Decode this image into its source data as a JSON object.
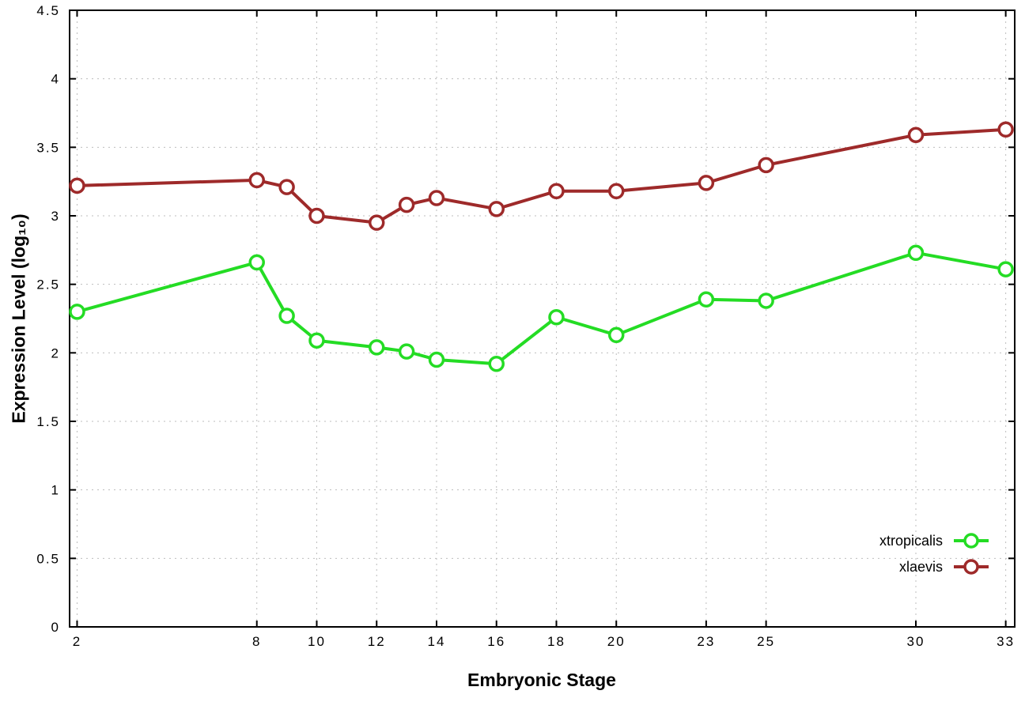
{
  "chart_data": {
    "type": "line",
    "title": "",
    "xlabel": "Embryonic Stage",
    "ylabel": "Expression Level (log₁₀)",
    "xlim": [
      1.75,
      33.3
    ],
    "ylim": [
      0,
      4.5
    ],
    "grid": true,
    "legend_position": "bottom-right",
    "xticks": {
      "values": [
        2,
        8,
        10,
        12,
        14,
        16,
        18,
        20,
        23,
        25,
        30,
        33
      ],
      "labels": [
        "2",
        "8",
        "10",
        "12",
        "14",
        "16",
        "18",
        "20",
        "23",
        "25",
        "30",
        "33"
      ]
    },
    "yticks": {
      "values": [
        0,
        0.5,
        1,
        1.5,
        2,
        2.5,
        3,
        3.5,
        4,
        4.5
      ],
      "labels": [
        "0",
        "0.5",
        "1",
        "1.5",
        "2",
        "2.5",
        "3",
        "3.5",
        "4",
        "4.5"
      ]
    },
    "x": [
      2,
      8,
      9,
      10,
      12,
      13,
      14,
      16,
      18,
      20,
      23,
      25,
      30,
      33
    ],
    "series": [
      {
        "name": "xtropicalis",
        "color": "#24dc24",
        "values": [
          2.3,
          2.66,
          2.27,
          2.09,
          2.04,
          2.01,
          1.95,
          1.92,
          2.26,
          2.13,
          2.39,
          2.38,
          2.73,
          2.61
        ]
      },
      {
        "name": "xlaevis",
        "color": "#9e2a2a",
        "values": [
          3.22,
          3.26,
          3.21,
          3.0,
          2.95,
          3.08,
          3.13,
          3.05,
          3.18,
          3.18,
          3.24,
          3.37,
          3.59,
          3.63
        ]
      }
    ]
  }
}
